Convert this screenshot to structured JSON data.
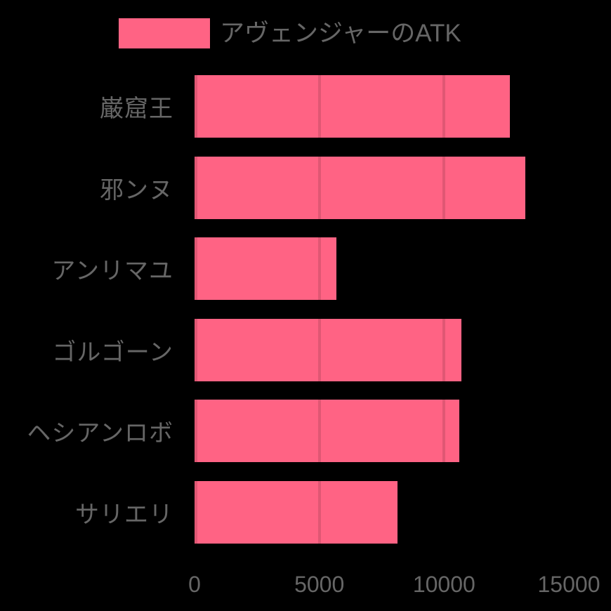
{
  "chart_data": {
    "type": "bar",
    "orientation": "horizontal",
    "legend_label": "アヴェンジャーのATK",
    "legend_position": "top",
    "categories": [
      "巌窟王",
      "邪ンヌ",
      "アンリマユ",
      "ゴルゴーン",
      "ヘシアンロボ",
      "サリエリ"
    ],
    "series": [
      {
        "name": "アヴェンジャーのATK",
        "values": [
          12641,
          13244,
          5683,
          10706,
          10623,
          8125
        ]
      }
    ],
    "xlabel": "",
    "ylabel": "",
    "xlim": [
      0,
      15000
    ],
    "x_ticks": [
      0,
      5000,
      10000,
      15000
    ],
    "x_tick_labels": [
      "0",
      "5000",
      "10000",
      "15000"
    ],
    "grid": true,
    "colors": {
      "bar": "#FF6384",
      "text": "#666666",
      "gridline": "rgba(0,0,0,0.12)",
      "background": "#000000"
    }
  }
}
